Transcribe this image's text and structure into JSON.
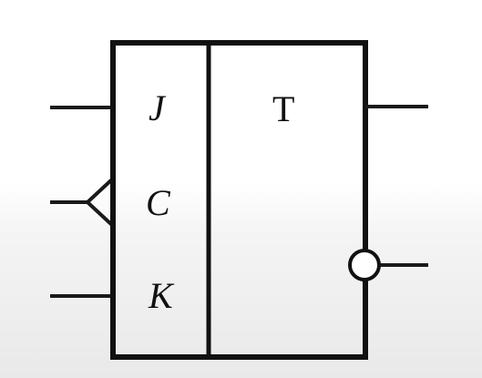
{
  "flipflop": {
    "pins": {
      "j": "J",
      "c": "C",
      "k": "K"
    },
    "type_label": "T"
  }
}
